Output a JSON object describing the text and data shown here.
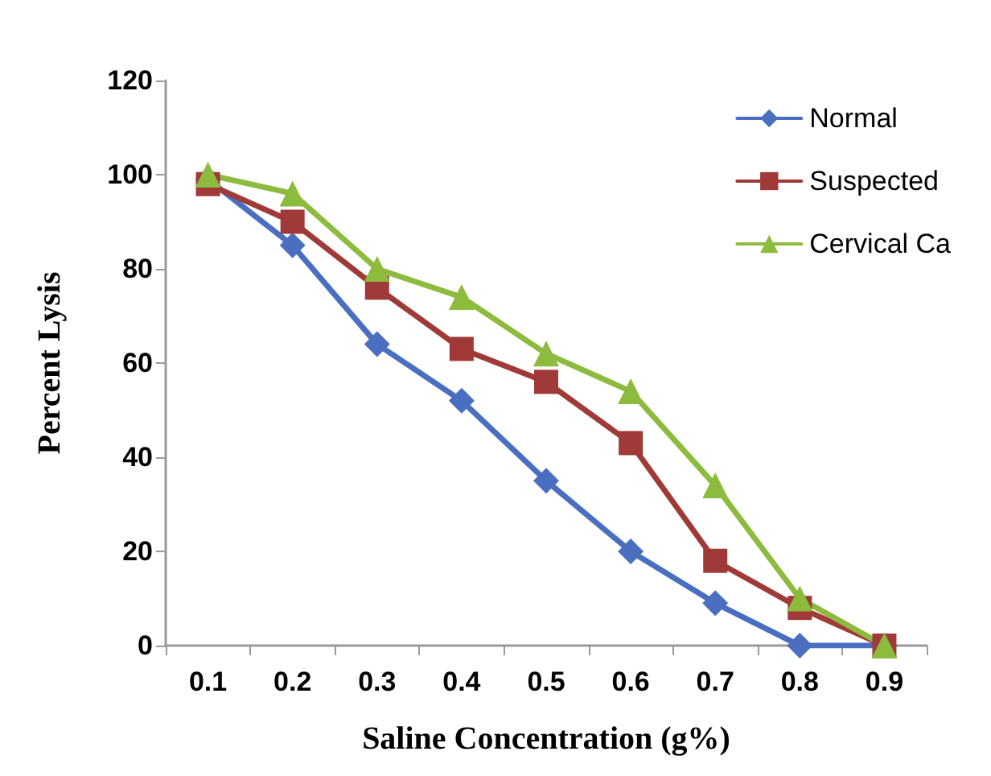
{
  "chart_data": {
    "type": "line",
    "xlabel": "Saline Concentration (g%)",
    "ylabel": "Percent Lysis",
    "categories": [
      "0.1",
      "0.2",
      "0.3",
      "0.4",
      "0.5",
      "0.6",
      "0.7",
      "0.8",
      "0.9"
    ],
    "series": [
      {
        "name": "Normal",
        "color": "#4a6fc0",
        "marker": "diamond",
        "values": [
          99,
          85,
          64,
          52,
          35,
          20,
          9,
          0,
          0
        ]
      },
      {
        "name": "Suspected",
        "color": "#a03a38",
        "marker": "square",
        "values": [
          98,
          90,
          76,
          63,
          56,
          43,
          18,
          8,
          0
        ]
      },
      {
        "name": "Cervical Ca",
        "color": "#8dbb3e",
        "marker": "triangle",
        "values": [
          100,
          96,
          80,
          74,
          62,
          54,
          34,
          10,
          0
        ]
      }
    ],
    "ylim": [
      0,
      120
    ],
    "yticks": [
      0,
      20,
      40,
      60,
      80,
      100,
      120
    ],
    "grid": false,
    "legend": "top right",
    "line_style": "solid"
  }
}
